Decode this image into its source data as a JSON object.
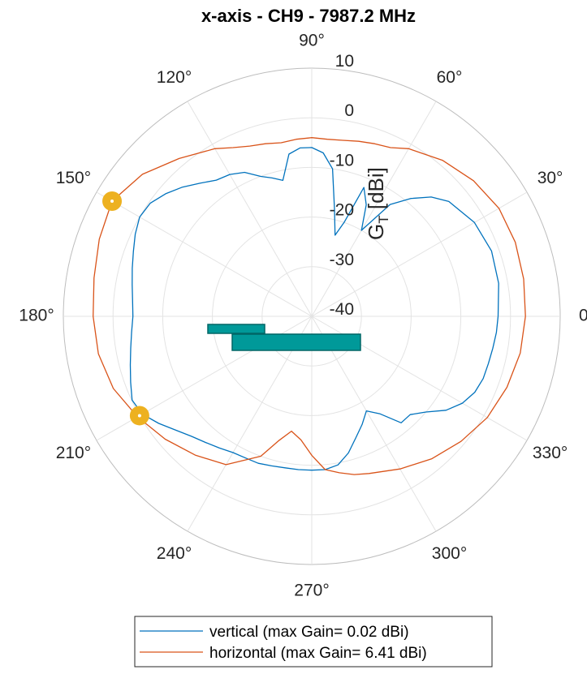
{
  "chart_data": {
    "type": "polar_line",
    "title": "x-axis - CH9 - 7987.2 MHz",
    "r_label": "G_T [dBi]",
    "r_label_main": "G",
    "r_label_sub": "T",
    "r_label_unit": " [dBi]",
    "r_ticks": [
      -40,
      -30,
      -20,
      -10,
      0,
      10
    ],
    "r_tick_labels": [
      "-40",
      "-30",
      "-20",
      "-10",
      "0",
      "10"
    ],
    "r_lim": [
      -40,
      10
    ],
    "theta_ticks_deg": [
      0,
      30,
      60,
      90,
      120,
      150,
      180,
      210,
      240,
      270,
      300,
      330
    ],
    "theta_tick_labels": [
      "0°",
      "30°",
      "60°",
      "90°",
      "120°",
      "150°",
      "180°",
      "210°",
      "240°",
      "270°",
      "300°",
      "330°"
    ],
    "grid": true,
    "legend_position": "bottom",
    "series": [
      {
        "name": "vertical (max Gain= 0.02 dBi)",
        "color": "#0072BD",
        "theta_deg": [
          0,
          10,
          20,
          30,
          40,
          45,
          50,
          55,
          60,
          64,
          68,
          71,
          74,
          78,
          82,
          86,
          90,
          94,
          98,
          102,
          106,
          110,
          115,
          120,
          125,
          130,
          135,
          140,
          145,
          150,
          155,
          160,
          165,
          170,
          175,
          180,
          185,
          190,
          195,
          200,
          205,
          210,
          215,
          220,
          225,
          230,
          235,
          240,
          245,
          250,
          255,
          260,
          265,
          270,
          275,
          280,
          285,
          290,
          295,
          300,
          305,
          310,
          315,
          320,
          325,
          330,
          335,
          340,
          345,
          350,
          355,
          360
        ],
        "r_db": [
          -2.5,
          -1.8,
          -1.5,
          -2.2,
          -4.0,
          -6.0,
          -9.0,
          -12.5,
          -20.0,
          -15.0,
          -12.0,
          -20.0,
          -23.0,
          -18.0,
          -10.0,
          -7.0,
          -6.0,
          -6.0,
          -7.0,
          -12.0,
          -11.0,
          -10.0,
          -8.0,
          -7.0,
          -6.5,
          -5.0,
          -3.2,
          -1.6,
          -0.3,
          0.0,
          -0.8,
          -1.8,
          -2.6,
          -3.3,
          -3.8,
          -4.0,
          -3.6,
          -3.0,
          -2.2,
          -1.2,
          -0.1,
          -0.6,
          -2.4,
          -4.3,
          -5.8,
          -6.8,
          -7.6,
          -8.3,
          -8.5,
          -8.5,
          -8.8,
          -9.0,
          -9.0,
          -9.0,
          -9.0,
          -9.6,
          -11.5,
          -14.0,
          -16.0,
          -18.0,
          -16.0,
          -12.0,
          -12.0,
          -10.0,
          -7.0,
          -5.0,
          -3.8,
          -3.3,
          -3.2,
          -3.0,
          -2.7,
          -2.5
        ]
      },
      {
        "name": "horizontal (max Gain= 6.41 dBi)",
        "color": "#D95319",
        "theta_deg": [
          0,
          10,
          20,
          30,
          40,
          50,
          60,
          65,
          70,
          75,
          80,
          85,
          90,
          95,
          100,
          105,
          110,
          115,
          120,
          130,
          140,
          150,
          160,
          170,
          180,
          190,
          200,
          210,
          220,
          230,
          240,
          250,
          255,
          260,
          265,
          270,
          275,
          280,
          285,
          290,
          300,
          310,
          320,
          330,
          340,
          350,
          360
        ],
        "r_db": [
          3.0,
          3.3,
          3.6,
          3.5,
          2.5,
          1.0,
          -1.0,
          -2.5,
          -3.0,
          -3.5,
          -4.0,
          -4.2,
          -4.0,
          -4.2,
          -4.5,
          -4.0,
          -3.5,
          -2.5,
          -1.0,
          1.5,
          4.5,
          6.41,
          5.5,
          4.5,
          4.0,
          3.6,
          2.5,
          0.5,
          -1.5,
          -3.5,
          -5.5,
          -10.0,
          -14.0,
          -16.5,
          -15.0,
          -12.0,
          -9.0,
          -8.0,
          -7.0,
          -6.3,
          -4.5,
          -2.5,
          -0.8,
          0.8,
          1.8,
          2.6,
          3.0
        ]
      }
    ],
    "markers": [
      {
        "label": "horizontal max",
        "theta_deg": 150,
        "r_db": 6.41,
        "color": "#EDB120"
      },
      {
        "label": "vertical max",
        "theta_deg": 210,
        "r_db": 0.02,
        "color": "#EDB120"
      }
    ],
    "antenna_icon_color": "#009999"
  }
}
